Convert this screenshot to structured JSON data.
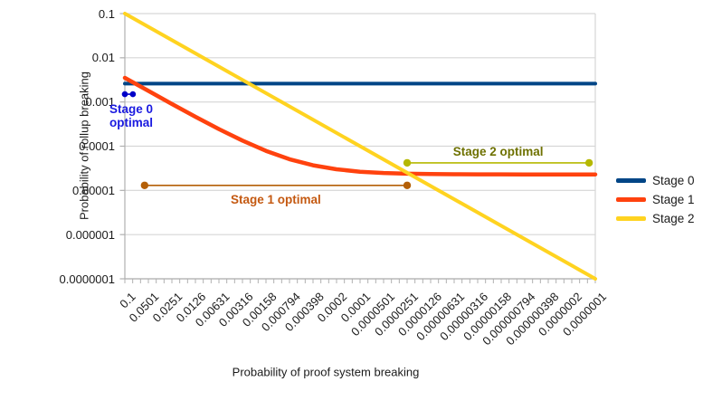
{
  "figure": {
    "xlabel": "Probability of proof system breaking",
    "ylabel": "Probability of rollup breaking"
  },
  "legend": {
    "position": "right",
    "items": [
      {
        "label": "Stage 0",
        "color": "#004586"
      },
      {
        "label": "Stage 1",
        "color": "#ff420e"
      },
      {
        "label": "Stage 2",
        "color": "#ffd320"
      }
    ]
  },
  "chart_data": {
    "type": "line",
    "x_scale": "log",
    "y_scale": "log",
    "xlabel": "Probability of proof system breaking",
    "ylabel": "Probability of rollup breaking",
    "x_range": [
      0.1,
      1e-07
    ],
    "ylim": [
      1e-07,
      0.1
    ],
    "grid": "horizontal",
    "legend_position": "right",
    "x_tick_labels": [
      "0.1",
      "0.0501",
      "0.0251",
      "0.0126",
      "0.00631",
      "0.00316",
      "0.00158",
      "0.000794",
      "0.000398",
      "0.0002",
      "0.0001",
      "0.0000501",
      "0.0000251",
      "0.0000126",
      "0.00000631",
      "0.00000316",
      "0.00000158",
      "0.000000794",
      "0.000000398",
      "0.0000002",
      "0.0000001"
    ],
    "x_tick_values": [
      0.1,
      0.0501,
      0.0251,
      0.0126,
      0.00631,
      0.00316,
      0.00158,
      0.000794,
      0.000398,
      0.0002,
      0.0001,
      5.01e-05,
      2.51e-05,
      1.26e-05,
      6.31e-06,
      3.16e-06,
      1.58e-06,
      7.94e-07,
      3.98e-07,
      2e-07,
      1e-07
    ],
    "y_tick_labels": [
      "0.1",
      "0.01",
      "0.001",
      "0.0001",
      "0.00001",
      "0.000001",
      "0.0000001"
    ],
    "y_tick_values": [
      0.1,
      0.01,
      0.001,
      0.0001,
      1e-05,
      1e-06,
      1e-07
    ],
    "series": [
      {
        "name": "Stage 0",
        "color": "#004586",
        "x": [
          0.1,
          1e-07
        ],
        "y": [
          0.0026,
          0.0026
        ]
      },
      {
        "name": "Stage 1",
        "color": "#ff420e",
        "x": [
          0.1,
          0.0501,
          0.0251,
          0.0126,
          0.00631,
          0.00316,
          0.00158,
          0.000794,
          0.000398,
          0.0002,
          0.0001,
          5.01e-05,
          2.51e-05,
          1.26e-05,
          6.31e-06,
          3.16e-06,
          1.58e-06,
          7.94e-07,
          3.98e-07,
          2e-07,
          1e-07
        ],
        "y": [
          0.00352,
          0.00178,
          0.000901,
          0.000464,
          0.000244,
          0.000134,
          7.83e-05,
          5.08e-05,
          3.69e-05,
          3e-05,
          2.65e-05,
          2.48e-05,
          2.39e-05,
          2.34e-05,
          2.32e-05,
          2.31e-05,
          2.31e-05,
          2.3e-05,
          2.3e-05,
          2.3e-05,
          2.3e-05
        ]
      },
      {
        "name": "Stage 2",
        "color": "#ffd320",
        "x": [
          0.1,
          1e-07
        ],
        "y": [
          0.1,
          1e-07
        ]
      }
    ],
    "annotations": [
      {
        "id": "stage-0-optimal",
        "label": "Stage 0\noptimal",
        "text_color": "#1a1ae0",
        "line_color": "#0000c8",
        "x_start": 0.1,
        "x_end": 0.079,
        "y": 0.0015,
        "label_side": "below-left"
      },
      {
        "id": "stage-1-optimal",
        "label": "Stage 1 optimal",
        "text_color": "#c45911",
        "line_color": "#b45f06",
        "x_start": 0.056,
        "x_end": 2.51e-05,
        "y": 1.3e-05,
        "label_side": "below"
      },
      {
        "id": "stage-2-optimal",
        "label": "Stage 2 optimal",
        "text_color": "#6e7100",
        "line_color": "#b5b800",
        "x_start": 2.51e-05,
        "x_end": 1.2e-07,
        "y": 4.2e-05,
        "label_side": "above"
      }
    ]
  }
}
